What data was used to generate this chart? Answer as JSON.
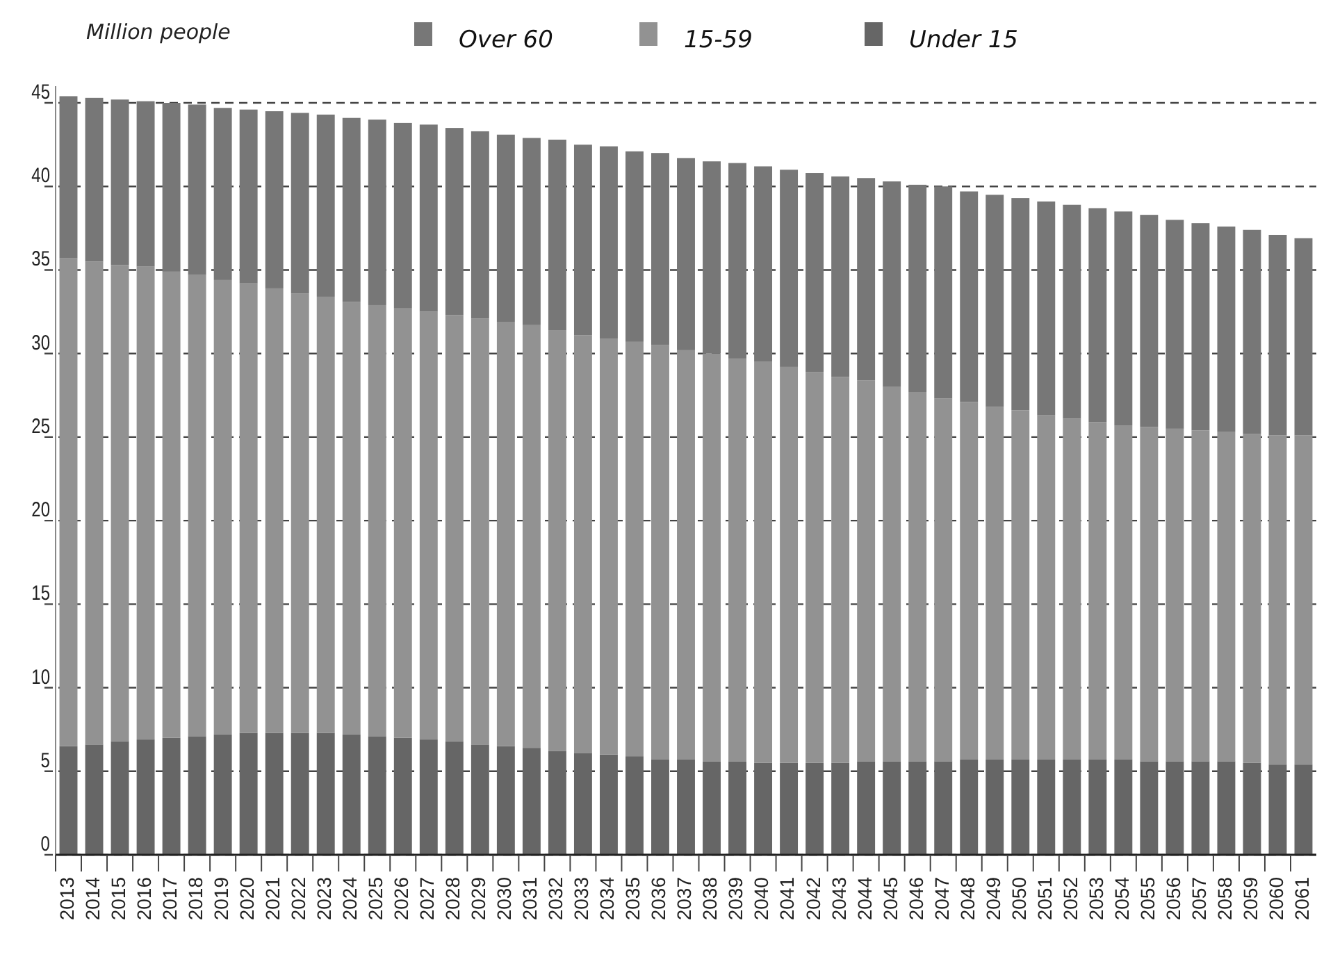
{
  "chart_data": {
    "type": "bar",
    "stacked": true,
    "ylabel": "Million people",
    "categories": [
      "2013",
      "2014",
      "2015",
      "2016",
      "2017",
      "2018",
      "2019",
      "2020",
      "2021",
      "2022",
      "2023",
      "2024",
      "2025",
      "2026",
      "2027",
      "2028",
      "2029",
      "2030",
      "2031",
      "2032",
      "2033",
      "2034",
      "2035",
      "2036",
      "2037",
      "2038",
      "2039",
      "2040",
      "2041",
      "2042",
      "2043",
      "2044",
      "2045",
      "2046",
      "2047",
      "2048",
      "2049",
      "2050",
      "2051",
      "2052",
      "2053",
      "2054",
      "2055",
      "2056",
      "2057",
      "2058",
      "2059",
      "2060",
      "2061"
    ],
    "series": [
      {
        "name": "Under 15",
        "color": "#666666",
        "values": [
          6.5,
          6.6,
          6.8,
          6.9,
          7.0,
          7.1,
          7.2,
          7.3,
          7.3,
          7.3,
          7.3,
          7.2,
          7.1,
          7.0,
          6.9,
          6.8,
          6.6,
          6.5,
          6.4,
          6.2,
          6.1,
          6.0,
          5.9,
          5.7,
          5.7,
          5.6,
          5.6,
          5.5,
          5.5,
          5.5,
          5.5,
          5.6,
          5.6,
          5.6,
          5.6,
          5.7,
          5.7,
          5.7,
          5.7,
          5.7,
          5.7,
          5.7,
          5.6,
          5.6,
          5.6,
          5.6,
          5.5,
          5.4,
          5.4
        ]
      },
      {
        "name": "15-59",
        "color": "#929292",
        "values": [
          29.2,
          28.9,
          28.5,
          28.3,
          27.9,
          27.6,
          27.2,
          26.9,
          26.6,
          26.3,
          26.1,
          25.9,
          25.8,
          25.7,
          25.6,
          25.5,
          25.5,
          25.4,
          25.3,
          25.2,
          25.0,
          24.9,
          24.8,
          24.8,
          24.5,
          24.4,
          24.1,
          24.0,
          23.7,
          23.4,
          23.1,
          22.8,
          22.4,
          22.1,
          21.7,
          21.4,
          21.1,
          20.9,
          20.6,
          20.4,
          20.2,
          20.0,
          20.0,
          19.9,
          19.8,
          19.7,
          19.7,
          19.7,
          19.7
        ]
      },
      {
        "name": "Over 60",
        "color": "#777777",
        "values": [
          9.7,
          9.8,
          9.9,
          9.9,
          10.1,
          10.2,
          10.3,
          10.4,
          10.6,
          10.8,
          10.9,
          11.0,
          11.1,
          11.1,
          11.2,
          11.2,
          11.2,
          11.2,
          11.2,
          11.4,
          11.4,
          11.5,
          11.4,
          11.5,
          11.5,
          11.5,
          11.7,
          11.7,
          11.8,
          11.9,
          12.0,
          12.1,
          12.3,
          12.4,
          12.7,
          12.6,
          12.7,
          12.7,
          12.8,
          12.8,
          12.8,
          12.8,
          12.7,
          12.5,
          12.4,
          12.3,
          12.2,
          12.0,
          11.8
        ]
      }
    ],
    "ylim": [
      0,
      46
    ],
    "yticks": [
      0,
      5,
      10,
      15,
      20,
      25,
      30,
      35,
      40,
      45
    ],
    "grid": "y",
    "line_style": "dashed",
    "legend": "top"
  }
}
